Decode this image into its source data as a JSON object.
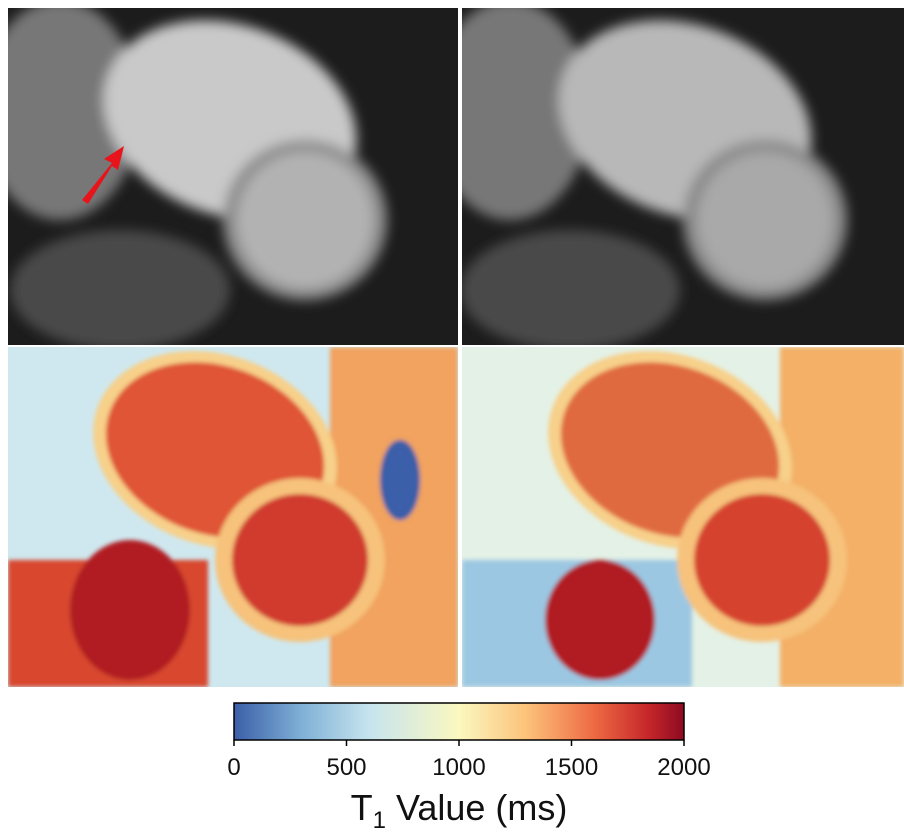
{
  "colorbar": {
    "lim": [
      0,
      2000
    ],
    "ticks": [
      0,
      500,
      1000,
      1500,
      2000
    ],
    "label": {
      "main": "T",
      "subscript": "1",
      "rest": " Value (ms)"
    }
  }
}
